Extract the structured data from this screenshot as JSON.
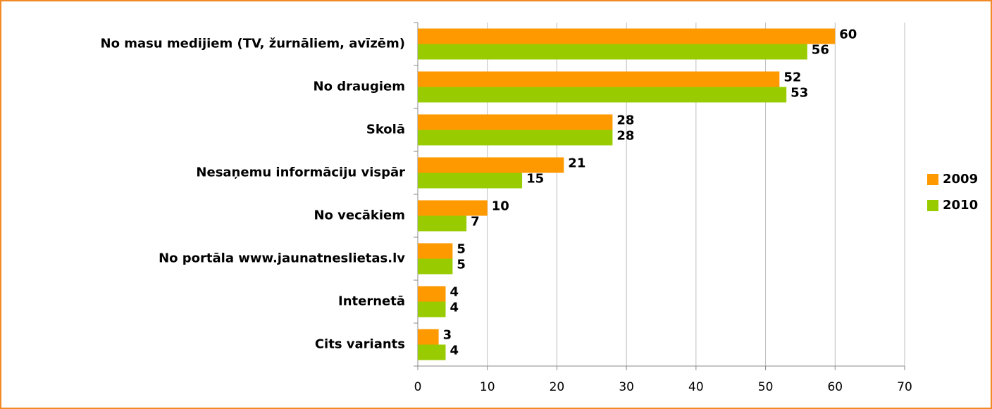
{
  "chart_data": {
    "type": "bar",
    "orientation": "horizontal",
    "categories": [
      "No masu medijiem (TV, žurnāliem, avīzēm)",
      "No draugiem",
      "Skolā",
      "Nesaņemu informāciju vispār",
      "No vecākiem",
      "No portāla www.jaunatneslietas.lv",
      "Internetā",
      "Cits variants"
    ],
    "series": [
      {
        "name": "2009",
        "color": "#ff9900",
        "values": [
          60,
          52,
          28,
          21,
          10,
          5,
          4,
          3
        ]
      },
      {
        "name": "2010",
        "color": "#99cc00",
        "values": [
          56,
          53,
          28,
          15,
          7,
          5,
          4,
          4
        ]
      }
    ],
    "xlim": [
      0,
      70
    ],
    "xticks": [
      0,
      10,
      20,
      30,
      40,
      50,
      60,
      70
    ],
    "grid": true,
    "legend": "right"
  }
}
